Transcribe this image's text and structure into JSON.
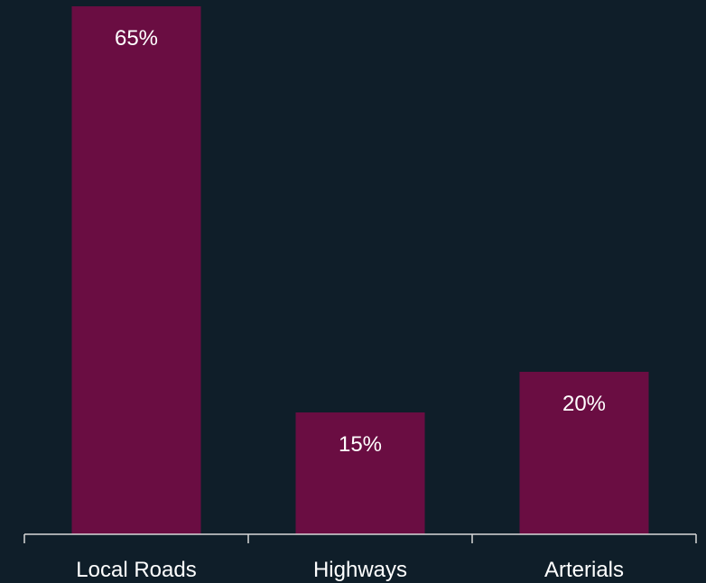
{
  "chart_data": {
    "type": "bar",
    "categories": [
      "Local Roads",
      "Highways",
      "Arterials"
    ],
    "values": [
      65,
      15,
      20
    ],
    "value_labels": [
      "65%",
      "15%",
      "20%"
    ],
    "title": "",
    "xlabel": "",
    "ylabel": "",
    "ylim": [
      0,
      65
    ],
    "grid": false,
    "legend": "none"
  },
  "colors": {
    "background": "#0f1e29",
    "bar": "#6a0d42",
    "axis": "#d9d9d9",
    "text": "#ffffff"
  }
}
